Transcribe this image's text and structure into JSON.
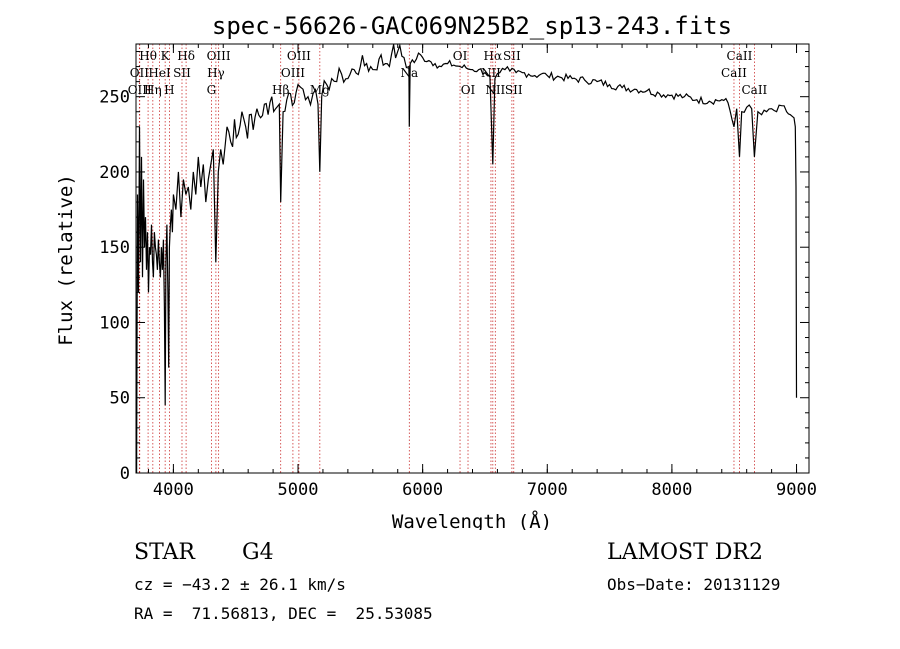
{
  "chart_data": {
    "type": "line",
    "title": "spec-56626-GAC069N25B2_sp13-243.fits",
    "xlabel": "Wavelength (Å)",
    "ylabel": "Flux (relative)",
    "xlim": [
      3700,
      9100
    ],
    "ylim": [
      0,
      285
    ],
    "x_ticks": [
      4000,
      5000,
      6000,
      7000,
      8000,
      9000
    ],
    "y_ticks": [
      0,
      50,
      100,
      150,
      200,
      250
    ],
    "grid": false,
    "legend": "none",
    "line_color": "#000000",
    "marker_color": "#cc3333",
    "series": [
      {
        "x": [
          3705,
          3712,
          3720,
          3728,
          3736,
          3744,
          3752,
          3760,
          3768,
          3776,
          3784,
          3792,
          3800,
          3808,
          3816,
          3824,
          3832,
          3840,
          3848,
          3856,
          3864,
          3872,
          3880,
          3888,
          3896,
          3904,
          3912,
          3920,
          3928,
          3934,
          3940,
          3948,
          3956,
          3962,
          3968,
          3976,
          3984,
          3992,
          4000,
          4020,
          4040,
          4060,
          4080,
          4100,
          4120,
          4140,
          4160,
          4180,
          4200,
          4220,
          4240,
          4260,
          4280,
          4300,
          4320,
          4340,
          4360,
          4380,
          4400,
          4430,
          4460,
          4490,
          4520,
          4550,
          4580,
          4610,
          4640,
          4670,
          4700,
          4730,
          4760,
          4790,
          4820,
          4850,
          4861,
          4880,
          4910,
          4940,
          4970,
          5000,
          5040,
          5080,
          5120,
          5160,
          5175,
          5190,
          5230,
          5270,
          5310,
          5350,
          5400,
          5450,
          5500,
          5550,
          5600,
          5650,
          5700,
          5750,
          5800,
          5850,
          5890,
          5893,
          5900,
          5950,
          6000,
          6050,
          6100,
          6150,
          6200,
          6250,
          6300,
          6350,
          6400,
          6450,
          6500,
          6540,
          6563,
          6580,
          6620,
          6660,
          6700,
          6750,
          6800,
          6850,
          6900,
          6950,
          7000,
          7100,
          7200,
          7300,
          7400,
          7500,
          7600,
          7700,
          7800,
          7900,
          8000,
          8100,
          8200,
          8300,
          8400,
          8450,
          8498,
          8520,
          8542,
          8560,
          8600,
          8640,
          8662,
          8690,
          8720,
          8760,
          8800,
          8840,
          8880,
          8920,
          8950,
          8980,
          8990,
          8996,
          9000
        ],
        "y": [
          0,
          185,
          120,
          230,
          140,
          210,
          130,
          195,
          150,
          170,
          135,
          160,
          120,
          150,
          145,
          165,
          140,
          130,
          160,
          150,
          145,
          135,
          155,
          140,
          130,
          150,
          135,
          155,
          110,
          45,
          140,
          165,
          120,
          70,
          150,
          165,
          175,
          160,
          185,
          175,
          200,
          170,
          195,
          185,
          190,
          175,
          200,
          185,
          210,
          190,
          205,
          180,
          195,
          205,
          215,
          140,
          200,
          215,
          205,
          230,
          220,
          235,
          225,
          240,
          230,
          238,
          228,
          242,
          236,
          245,
          238,
          250,
          242,
          245,
          180,
          240,
          248,
          252,
          246,
          258,
          255,
          250,
          252,
          245,
          200,
          250,
          258,
          262,
          260,
          265,
          262,
          268,
          270,
          272,
          268,
          275,
          272,
          278,
          280,
          276,
          270,
          230,
          272,
          275,
          276,
          274,
          272,
          270,
          272,
          271,
          270,
          269,
          268,
          268,
          266,
          264,
          205,
          262,
          266,
          268,
          267,
          266,
          266,
          265,
          264,
          265,
          264,
          263,
          262,
          261,
          260,
          258,
          256,
          255,
          254,
          252,
          251,
          250,
          248,
          247,
          248,
          246,
          230,
          242,
          210,
          240,
          243,
          242,
          210,
          240,
          238,
          240,
          242,
          240,
          244,
          240,
          238,
          236,
          230,
          190,
          50
        ]
      }
    ],
    "line_markers": [
      {
        "label": "Hθ",
        "x": 3797,
        "row": 0
      },
      {
        "label": "OII",
        "x": 3727,
        "row": 1
      },
      {
        "label": "OIII",
        "x": 3730,
        "row": 2
      },
      {
        "label": "Hη",
        "x": 3835,
        "row": 2
      },
      {
        "label": "K",
        "x": 3934,
        "row": 0
      },
      {
        "label": "HeI",
        "x": 3889,
        "row": 1
      },
      {
        "label": "H",
        "x": 3968,
        "row": 2
      },
      {
        "label": "Hδ",
        "x": 4102,
        "row": 0
      },
      {
        "label": "SII",
        "x": 4069,
        "row": 1
      },
      {
        "label": "OIII",
        "x": 4363,
        "row": 0
      },
      {
        "label": "Hγ",
        "x": 4341,
        "row": 1
      },
      {
        "label": "G",
        "x": 4305,
        "row": 2
      },
      {
        "label": "OIII",
        "x": 5007,
        "row": 0
      },
      {
        "label": "OIII",
        "x": 4959,
        "row": 1
      },
      {
        "label": "Hβ",
        "x": 4861,
        "row": 2
      },
      {
        "label": "Mg",
        "x": 5175,
        "row": 2
      },
      {
        "label": "Na",
        "x": 5893,
        "row": 1
      },
      {
        "label": "OI",
        "x": 6300,
        "row": 0
      },
      {
        "label": "OI",
        "x": 6364,
        "row": 2
      },
      {
        "label": "Hα",
        "x": 6563,
        "row": 0
      },
      {
        "label": "SII",
        "x": 6716,
        "row": 0
      },
      {
        "label": "NII",
        "x": 6548,
        "row": 1
      },
      {
        "label": "NII",
        "x": 6583,
        "row": 2
      },
      {
        "label": "SII",
        "x": 6731,
        "row": 2
      },
      {
        "label": "CaII",
        "x": 8542,
        "row": 0
      },
      {
        "label": "CaII",
        "x": 8498,
        "row": 1
      },
      {
        "label": "CaII",
        "x": 8662,
        "row": 2
      }
    ]
  },
  "info": {
    "object_class": "STAR",
    "subclass": "G4",
    "survey": "LAMOST DR2",
    "cz": "cz = −43.2 ± 26.1 km/s",
    "obs_date": "Obs−Date: 20131129",
    "coords": "RA =  71.56813, DEC =  25.53085"
  }
}
